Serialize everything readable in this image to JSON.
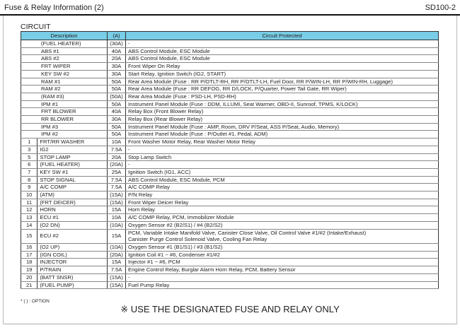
{
  "header": {
    "title": "Fuse & Relay Information (2)",
    "code": "SD100-2"
  },
  "section": "CIRCUIT",
  "columns": {
    "description": "Description",
    "amps": "(A)",
    "circuit": "Circuit Protected"
  },
  "rows": [
    {
      "no": "",
      "desc": "(FUEL HEATER)",
      "amp": "(30A)",
      "circuit": [
        "-"
      ]
    },
    {
      "no": "",
      "desc": "ABS #1",
      "amp": "40A",
      "circuit": [
        "ABS Control Module, ESC Module"
      ]
    },
    {
      "no": "",
      "desc": "ABS #2",
      "amp": "20A",
      "circuit": [
        "ABS Control Module, ESC Module"
      ]
    },
    {
      "no": "",
      "desc": "FRT WIPER",
      "amp": "30A",
      "circuit": [
        "Front Wiper On Relay"
      ]
    },
    {
      "no": "",
      "desc": "KEY SW #2",
      "amp": "30A",
      "circuit": [
        "Start Relay, Ignition Switch (IG2, START)"
      ]
    },
    {
      "no": "",
      "desc": "RAM #1",
      "amp": "50A",
      "circuit": [
        "Rear Area Module (Fuse : RR P/OTLT-RH, RR P/OTLT-LH, Fuel Door, RR P/WIN-LH, RR P/WIN-RH, Luggage)"
      ]
    },
    {
      "no": "",
      "desc": "RAM #2",
      "amp": "50A",
      "circuit": [
        "Rear Area Module (Fuse : RR DEFOG, RR D/LOCK, P/Quarter, Power Tail Gate, RR Wiper)"
      ]
    },
    {
      "no": "",
      "desc": "(RAM #3)",
      "amp": "(50A)",
      "circuit": [
        "Rear Area Module (Fuse : PSD-LH, PSD-RH)"
      ]
    },
    {
      "no": "",
      "desc": "IPM #1",
      "amp": "50A",
      "circuit": [
        "Instrument Panel Module (Fuse : DDM, ILLUMI, Seat Warmer, OBD-II, Sunroof, TPMS, K/LOCK)"
      ]
    },
    {
      "no": "",
      "desc": "FRT  BLOWER",
      "amp": "40A",
      "circuit": [
        "Relay Box (Front Blower Relay)"
      ]
    },
    {
      "no": "",
      "desc": "RR BLOWER",
      "amp": "30A",
      "circuit": [
        "Relay Box (Rear Blower Relay)"
      ]
    },
    {
      "no": "",
      "desc": "IPM #3",
      "amp": "50A",
      "circuit": [
        "Instrument Panel Module (Fuse : AMP, Room, DRV P/Seat, ASS P/Seat, Audio, Memory)"
      ]
    },
    {
      "no": "",
      "desc": "IPM #2",
      "amp": "50A",
      "circuit": [
        "Instrument Panel Module (Fuse : P/Outlet #1, Pedal, ADM)"
      ]
    },
    {
      "no": "1",
      "desc": "FRT/RR WASHER",
      "amp": "10A",
      "circuit": [
        "Front Washer Motor Relay, Rear Washer Motor Relay"
      ]
    },
    {
      "no": "3",
      "desc": "IG2",
      "amp": "7.5A",
      "circuit": [
        "-"
      ]
    },
    {
      "no": "5",
      "desc": "STOP LAMP",
      "amp": "20A",
      "circuit": [
        "Stop Lamp Switch"
      ]
    },
    {
      "no": "6",
      "desc": "(FUEL HEATER)",
      "amp": "(20A)",
      "circuit": [
        "-"
      ]
    },
    {
      "no": "7",
      "desc": "KEY SW #1",
      "amp": "25A",
      "circuit": [
        "Ignition Switch (IG1, ACC)"
      ]
    },
    {
      "no": "8",
      "desc": "STOP SIGNAL",
      "amp": "7.5A",
      "circuit": [
        "ABS Control Module, ESC Module, PCM"
      ]
    },
    {
      "no": "9",
      "desc": "A/C COMP",
      "amp": "7.5A",
      "circuit": [
        "A/C COMP Relay"
      ]
    },
    {
      "no": "10",
      "desc": "(ATM)",
      "amp": "(15A)",
      "circuit": [
        "P/N Relay"
      ]
    },
    {
      "no": "11",
      "desc": "(FRT DEICER)",
      "amp": "(15A)",
      "circuit": [
        "Front Wiper Deicer Relay"
      ]
    },
    {
      "no": "12",
      "desc": "HORN",
      "amp": "15A",
      "circuit": [
        "Horn Relay"
      ]
    },
    {
      "no": "13",
      "desc": "ECU #1",
      "amp": "10A",
      "circuit": [
        "A/C COMP Relay, PCM, Immobilizer Module"
      ]
    },
    {
      "no": "14",
      "desc": "(O2 DN)",
      "amp": "(10A)",
      "circuit": [
        "Oxygen Sensor #2 (B2/S1) / #4 (B2/S2)"
      ]
    },
    {
      "no": "15",
      "desc": "ECU #2",
      "amp": "15A",
      "circuit": [
        "PCM, Variable Intake Manifold Valve, Canister Close Valve, Oil Control Valve #1/#2 (Intake/Exhaust)",
        "Canister Purge Control Solenoid Valve, Cooling Fan Relay"
      ]
    },
    {
      "no": "16",
      "desc": "(O2 UP)",
      "amp": "(10A)",
      "circuit": [
        "Oxygen Sensor #1 (B1/S1) / #3 (B1/S2)"
      ]
    },
    {
      "no": "17",
      "desc": "(IGN COIL)",
      "amp": "(20A)",
      "circuit": [
        "Ignition Coil #1 ~ #6, Condenser #1/#2"
      ]
    },
    {
      "no": "18",
      "desc": "INJECTOR",
      "amp": "15A",
      "circuit": [
        "Injector #1 ~ #6, PCM"
      ]
    },
    {
      "no": "19",
      "desc": "P/TRAIN",
      "amp": "7.5A",
      "circuit": [
        "Engine Control Relay, Burglar Alarm Horn Relay, PCM, Battery Sensor"
      ]
    },
    {
      "no": "20",
      "desc": "(BATT SNSR)",
      "amp": "(15A)",
      "circuit": [
        "-"
      ]
    },
    {
      "no": "21",
      "desc": "(FUEL PUMP)",
      "amp": "(15A)",
      "circuit": [
        "Fuel Pump Relay"
      ]
    }
  ],
  "footnote": "* (   ) : OPTION",
  "warning": "※ USE THE DESIGNATED FUSE AND RELAY ONLY",
  "colors": {
    "header_bg": "#79cde6"
  }
}
